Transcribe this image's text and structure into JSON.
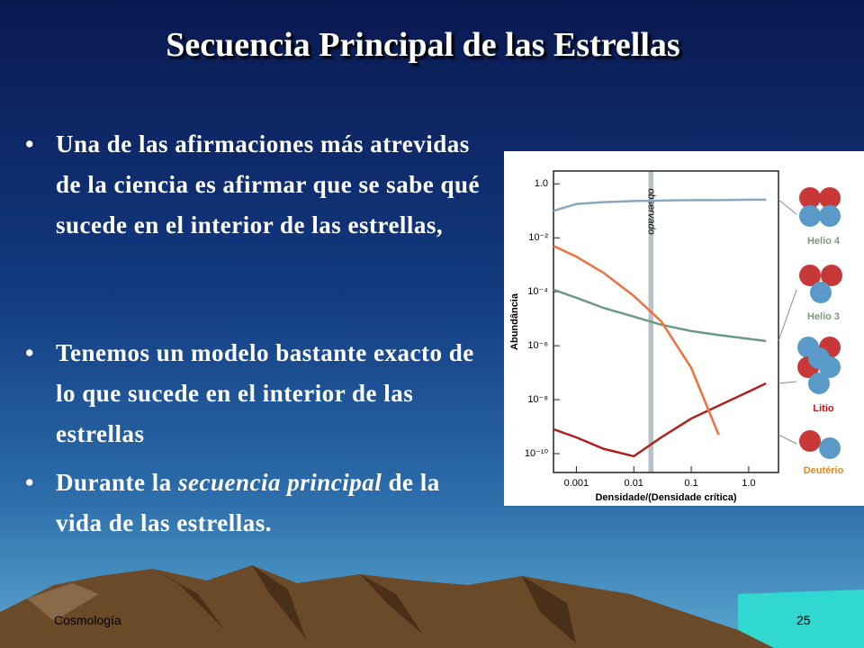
{
  "slide": {
    "title": "Secuencia Principal de las Estrellas",
    "bullets": [
      "Una de las afirmaciones más atrevidas de la ciencia es afirmar que se sabe qué sucede en el interior de las estrellas,",
      "Tenemos un modelo bastante exacto de lo que sucede en el interior de las estrellas",
      {
        "parts": [
          "Durante la ",
          "secuencia principal",
          " de la vida de las estrellas."
        ]
      }
    ],
    "footer": {
      "left": "Cosmología",
      "page": "25"
    }
  },
  "chart_data": {
    "type": "line",
    "y_label": "Abundância",
    "x_label": "Densidade/(Densidade crítica)",
    "annotation": "observado",
    "log_x": true,
    "log_y": true,
    "xlim": [
      0.0004,
      3.3
    ],
    "ylim": [
      2e-11,
      3
    ],
    "xticks": [
      0.001,
      0.01,
      0.1,
      {
        "value": 1,
        "label": "1.0"
      }
    ],
    "yticks": [
      {
        "value": 1,
        "label": "1.0"
      },
      {
        "value": 0.01,
        "label": "10⁻²"
      },
      {
        "value": 0.0001,
        "label": "10⁻⁴"
      },
      {
        "value": 1e-06,
        "label": "10⁻⁶"
      },
      {
        "value": 1e-08,
        "label": "10⁻⁸"
      },
      {
        "value": 1e-10,
        "label": "10⁻¹⁰"
      }
    ],
    "band": [
      0.018,
      0.022
    ],
    "x": [
      0.0004,
      0.001,
      0.003,
      0.01,
      0.03,
      0.1,
      0.3,
      1,
      2
    ],
    "series": [
      {
        "name": "Helio 4",
        "color": "#8aa8c0",
        "label_color": "#7a9a7a",
        "values": [
          0.1,
          0.18,
          0.21,
          0.23,
          0.24,
          0.25,
          0.25,
          0.26,
          0.26
        ]
      },
      {
        "name": "Helio 3",
        "color": "#6a9a80",
        "label_color": "#7a9a7a",
        "values": [
          0.00012,
          6e-05,
          2.5e-05,
          1.2e-05,
          6e-06,
          3.5e-06,
          2.5e-06,
          1.8e-06,
          1.5e-06
        ]
      },
      {
        "name": "Litio",
        "color": "#b02020",
        "label_color": "#cc1010",
        "values": [
          8e-10,
          4e-10,
          1.5e-10,
          8e-11,
          4e-10,
          2e-09,
          6e-09,
          2e-08,
          4e-08
        ]
      },
      {
        "name": "Deutério",
        "color": "#f07040",
        "label_color": "#e08a20",
        "values": [
          0.005,
          0.002,
          0.0005,
          7e-05,
          8e-06,
          1.5e-07,
          5e-10,
          null,
          null
        ]
      }
    ]
  }
}
